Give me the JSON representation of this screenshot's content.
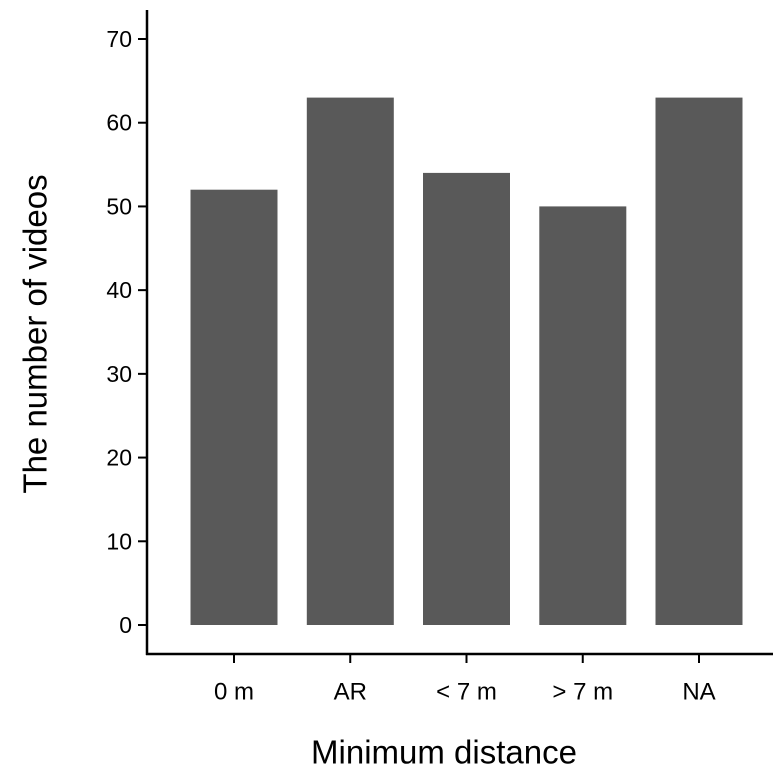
{
  "chart_data": {
    "type": "bar",
    "title": "",
    "xlabel": "Minimum distance",
    "ylabel": "The number of videos",
    "categories": [
      "0 m",
      "AR",
      "< 7 m",
      "> 7 m",
      "NA"
    ],
    "values": [
      52,
      63,
      54,
      50,
      63
    ],
    "ylim": [
      0,
      70
    ],
    "yticks": [
      0,
      10,
      20,
      30,
      40,
      50,
      60,
      70
    ],
    "grid": false,
    "legend": "none",
    "colors": {
      "bar": "#595959",
      "axis": "#000000",
      "text": "#000000"
    }
  }
}
